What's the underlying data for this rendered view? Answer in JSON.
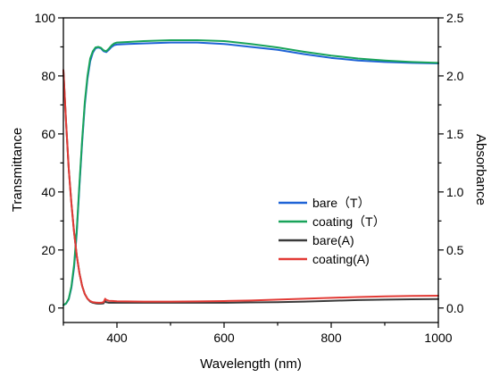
{
  "chart_data": {
    "type": "line",
    "xlabel": "Wavelength (nm)",
    "ylabel_left": "Transmittance",
    "ylabel_right": "Absorbance",
    "xlim": [
      300,
      1000
    ],
    "ylim_left": [
      -5,
      100
    ],
    "ylim_right": [
      -0.125,
      2.5
    ],
    "x_ticks": [
      400,
      600,
      800,
      1000
    ],
    "y_left_ticks": [
      0,
      20,
      40,
      60,
      80,
      100
    ],
    "y_right_ticks": [
      "0.0",
      "0.5",
      "1.0",
      "1.5",
      "2.0",
      "2.5"
    ],
    "legend_position": "center-right",
    "series": [
      {
        "name": "bare（T）",
        "axis": "left",
        "color": "#1f63d6",
        "x": [
          300,
          305,
          310,
          315,
          320,
          325,
          330,
          335,
          340,
          345,
          350,
          355,
          360,
          365,
          370,
          375,
          380,
          385,
          390,
          395,
          400,
          420,
          450,
          500,
          550,
          600,
          650,
          700,
          750,
          800,
          850,
          900,
          950,
          1000
        ],
        "y": [
          1,
          1.5,
          3,
          7,
          14,
          26,
          42,
          57,
          70,
          79,
          85,
          88,
          89.5,
          89.8,
          89.5,
          88.5,
          88.2,
          89,
          90,
          90.6,
          90.8,
          91,
          91.2,
          91.5,
          91.5,
          91,
          90,
          89,
          87.5,
          86.2,
          85.3,
          84.8,
          84.5,
          84.3
        ]
      },
      {
        "name": "coating（T）",
        "axis": "left",
        "color": "#19a35a",
        "x": [
          300,
          305,
          310,
          315,
          320,
          325,
          330,
          335,
          340,
          345,
          350,
          355,
          360,
          365,
          370,
          375,
          380,
          385,
          390,
          395,
          400,
          420,
          450,
          500,
          550,
          600,
          650,
          700,
          750,
          800,
          850,
          900,
          950,
          1000
        ],
        "y": [
          1,
          1.6,
          3.2,
          7.5,
          15,
          27,
          43,
          58,
          71,
          80,
          86,
          88.5,
          89.8,
          90,
          89.7,
          88.8,
          88.5,
          89.4,
          90.5,
          91.2,
          91.5,
          91.7,
          92,
          92.3,
          92.3,
          92,
          91,
          89.8,
          88.3,
          87,
          86,
          85.3,
          84.8,
          84.5
        ]
      },
      {
        "name": "bare(A)",
        "axis": "right",
        "color": "#3a3a3a",
        "x": [
          300,
          305,
          310,
          315,
          320,
          325,
          330,
          335,
          340,
          345,
          350,
          355,
          360,
          365,
          370,
          375,
          378,
          380,
          385,
          400,
          450,
          500,
          550,
          600,
          650,
          700,
          750,
          800,
          850,
          900,
          950,
          1000
        ],
        "y": [
          2.05,
          1.6,
          1.2,
          0.9,
          0.65,
          0.45,
          0.3,
          0.19,
          0.12,
          0.08,
          0.055,
          0.045,
          0.04,
          0.038,
          0.038,
          0.04,
          0.06,
          0.05,
          0.045,
          0.045,
          0.045,
          0.045,
          0.045,
          0.045,
          0.048,
          0.05,
          0.055,
          0.062,
          0.068,
          0.072,
          0.075,
          0.077
        ]
      },
      {
        "name": "coating(A)",
        "axis": "right",
        "color": "#e23a35",
        "x": [
          300,
          305,
          310,
          315,
          320,
          325,
          330,
          335,
          340,
          345,
          350,
          355,
          360,
          365,
          370,
          375,
          378,
          380,
          385,
          400,
          450,
          500,
          550,
          600,
          650,
          700,
          750,
          800,
          850,
          900,
          950,
          1000
        ],
        "y": [
          2.05,
          1.6,
          1.2,
          0.9,
          0.65,
          0.45,
          0.3,
          0.19,
          0.12,
          0.08,
          0.06,
          0.05,
          0.047,
          0.045,
          0.045,
          0.05,
          0.08,
          0.07,
          0.062,
          0.058,
          0.055,
          0.055,
          0.057,
          0.06,
          0.065,
          0.072,
          0.08,
          0.088,
          0.094,
          0.1,
          0.104,
          0.106
        ]
      }
    ]
  }
}
